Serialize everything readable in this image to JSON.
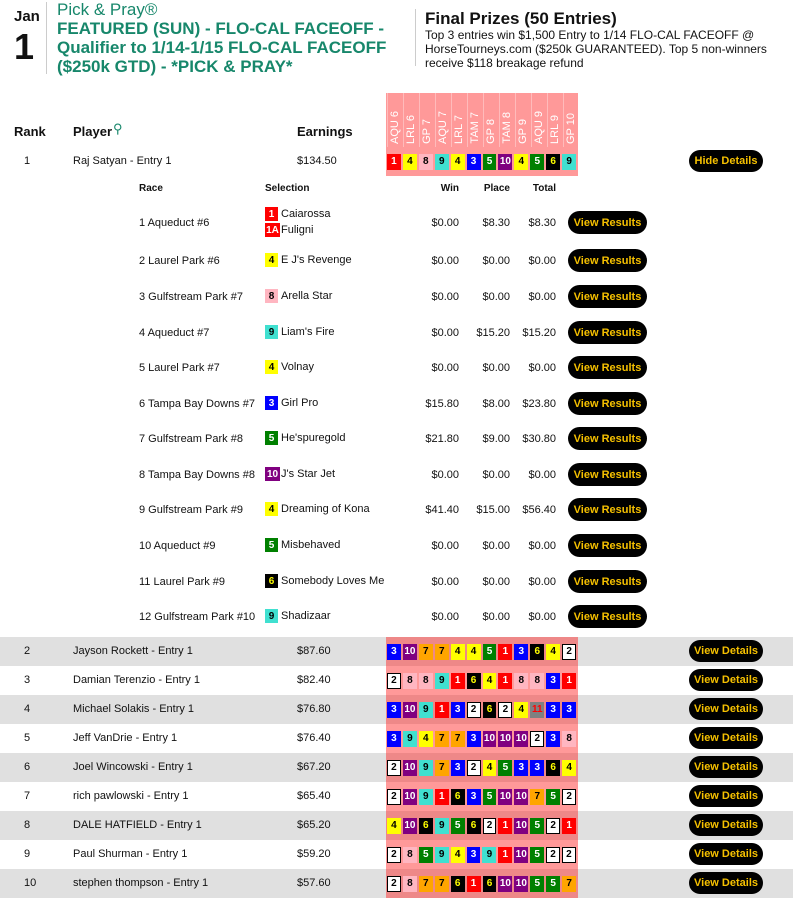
{
  "header": {
    "month": "Jan",
    "day": "1",
    "brand": "Pick & Pray®",
    "title": "FEATURED (SUN) - FLO-CAL FACEOFF - Qualifier to 1/14-1/15 FLO-CAL FACEOFF ($250k GTD) - *PICK & PRAY*",
    "prizes_title": "Final Prizes (50 Entries)",
    "prizes_text": "Top 3 entries win $1,500 Entry to 1/14 FLO-CAL FACEOFF @ HorseTourneys.com ($250k GUARANTEED). Top 5 non-winners receive $118 breakage refund"
  },
  "columns": {
    "rank": "Rank",
    "player": "Player",
    "earnings": "Earnings",
    "tracks": [
      "AQU 6",
      "LRL 6",
      "GP 7",
      "AQU 7",
      "LRL 7",
      "TAM 7",
      "GP 8",
      "TAM 8",
      "GP 9",
      "AQU 9",
      "LRL 9",
      "GP 10"
    ]
  },
  "colors": {
    "1": [
      "#ff0000",
      "#fff"
    ],
    "1A": [
      "#ff0000",
      "#fff"
    ],
    "2": [
      "#ffffff",
      "#000"
    ],
    "3": [
      "#0000ff",
      "#fff"
    ],
    "4": [
      "#ffff00",
      "#000"
    ],
    "5": [
      "#008000",
      "#fff"
    ],
    "6": [
      "#000000",
      "#ffff00"
    ],
    "7": [
      "#ffa500",
      "#000"
    ],
    "8": [
      "#ffb6c1",
      "#000"
    ],
    "9": [
      "#40e0d0",
      "#000"
    ],
    "10": [
      "#800080",
      "#fff"
    ],
    "11": [
      "#808080",
      "#ff0000"
    ]
  },
  "details_header": {
    "race": "Race",
    "selection": "Selection",
    "win": "Win",
    "place": "Place",
    "total": "Total"
  },
  "details": [
    {
      "race": "1 Aqueduct #6",
      "sel": [
        [
          "1",
          "Caiarossa"
        ],
        [
          "1A",
          "Fuligni"
        ]
      ],
      "win": "$0.00",
      "place": "$8.30",
      "total": "$8.30",
      "button": "View Results"
    },
    {
      "race": "2 Laurel Park #6",
      "sel": [
        [
          "4",
          "E J's Revenge"
        ]
      ],
      "win": "$0.00",
      "place": "$0.00",
      "total": "$0.00",
      "button": "View Results"
    },
    {
      "race": "3 Gulfstream Park #7",
      "sel": [
        [
          "8",
          "Arella Star"
        ]
      ],
      "win": "$0.00",
      "place": "$0.00",
      "total": "$0.00",
      "button": "View Results"
    },
    {
      "race": "4 Aqueduct #7",
      "sel": [
        [
          "9",
          "Liam's Fire"
        ]
      ],
      "win": "$0.00",
      "place": "$15.20",
      "total": "$15.20",
      "button": "View Results"
    },
    {
      "race": "5 Laurel Park #7",
      "sel": [
        [
          "4",
          "Volnay"
        ]
      ],
      "win": "$0.00",
      "place": "$0.00",
      "total": "$0.00",
      "button": "View Results"
    },
    {
      "race": "6 Tampa Bay Downs #7",
      "sel": [
        [
          "3",
          "Girl Pro"
        ]
      ],
      "win": "$15.80",
      "place": "$8.00",
      "total": "$23.80",
      "button": "View Results"
    },
    {
      "race": "7 Gulfstream Park #8",
      "sel": [
        [
          "5",
          "He'spuregold"
        ]
      ],
      "win": "$21.80",
      "place": "$9.00",
      "total": "$30.80",
      "button": "View Results"
    },
    {
      "race": "8 Tampa Bay Downs #8",
      "sel": [
        [
          "10",
          "J's Star Jet"
        ]
      ],
      "win": "$0.00",
      "place": "$0.00",
      "total": "$0.00",
      "button": "View Results"
    },
    {
      "race": "9 Gulfstream Park #9",
      "sel": [
        [
          "4",
          "Dreaming of Kona"
        ]
      ],
      "win": "$41.40",
      "place": "$15.00",
      "total": "$56.40",
      "button": "View Results"
    },
    {
      "race": "10 Aqueduct #9",
      "sel": [
        [
          "5",
          "Misbehaved"
        ]
      ],
      "win": "$0.00",
      "place": "$0.00",
      "total": "$0.00",
      "button": "View Results"
    },
    {
      "race": "11 Laurel Park #9",
      "sel": [
        [
          "6",
          "Somebody Loves Me"
        ]
      ],
      "win": "$0.00",
      "place": "$0.00",
      "total": "$0.00",
      "button": "View Results"
    },
    {
      "race": "12 Gulfstream Park #10",
      "sel": [
        [
          "9",
          "Shadizaar"
        ]
      ],
      "win": "$0.00",
      "place": "$0.00",
      "total": "$0.00",
      "button": "View Results"
    }
  ],
  "entries": [
    {
      "rank": "1",
      "player": "Raj Satyan - Entry 1",
      "earnings": "$134.50",
      "picks": [
        "1",
        "4",
        "8",
        "9",
        "4",
        "3",
        "5",
        "10",
        "4",
        "5",
        "6",
        "9"
      ],
      "button": "Hide Details"
    },
    {
      "rank": "2",
      "player": "Jayson Rockett - Entry 1",
      "earnings": "$87.60",
      "picks": [
        "3",
        "10",
        "7",
        "7",
        "4",
        "4",
        "5",
        "1",
        "3",
        "6",
        "4",
        "2"
      ],
      "button": "View Details"
    },
    {
      "rank": "3",
      "player": "Damian Terenzio - Entry 1",
      "earnings": "$82.40",
      "picks": [
        "2",
        "8",
        "8",
        "9",
        "1",
        "6",
        "4",
        "1",
        "8",
        "8",
        "3",
        "1"
      ],
      "button": "View Details"
    },
    {
      "rank": "4",
      "player": "Michael Solakis - Entry 1",
      "earnings": "$76.80",
      "picks": [
        "3",
        "10",
        "9",
        "1",
        "3",
        "2",
        "6",
        "2",
        "4",
        "11",
        "3",
        "3"
      ],
      "button": "View Details"
    },
    {
      "rank": "5",
      "player": "Jeff VanDrie - Entry 1",
      "earnings": "$76.40",
      "picks": [
        "3",
        "9",
        "4",
        "7",
        "7",
        "3",
        "10",
        "10",
        "10",
        "2",
        "3",
        "8"
      ],
      "button": "View Details"
    },
    {
      "rank": "6",
      "player": "Joel Wincowski - Entry 1",
      "earnings": "$67.20",
      "picks": [
        "2",
        "10",
        "9",
        "7",
        "3",
        "2",
        "4",
        "5",
        "3",
        "3",
        "6",
        "4"
      ],
      "button": "View Details"
    },
    {
      "rank": "7",
      "player": "rich pawlowski - Entry 1",
      "earnings": "$65.40",
      "picks": [
        "2",
        "10",
        "9",
        "1",
        "6",
        "3",
        "5",
        "10",
        "10",
        "7",
        "5",
        "2"
      ],
      "button": "View Details"
    },
    {
      "rank": "8",
      "player": "DALE HATFIELD - Entry 1",
      "earnings": "$65.20",
      "picks": [
        "4",
        "10",
        "6",
        "9",
        "5",
        "6",
        "2",
        "1",
        "10",
        "5",
        "2",
        "1"
      ],
      "button": "View Details"
    },
    {
      "rank": "9",
      "player": "Paul Shurman - Entry 1",
      "earnings": "$59.20",
      "picks": [
        "2",
        "8",
        "5",
        "9",
        "4",
        "3",
        "9",
        "1",
        "10",
        "5",
        "2",
        "2"
      ],
      "button": "View Details"
    },
    {
      "rank": "10",
      "player": "stephen thompson - Entry 1",
      "earnings": "$57.60",
      "picks": [
        "2",
        "8",
        "7",
        "7",
        "6",
        "1",
        "6",
        "10",
        "10",
        "5",
        "5",
        "7"
      ],
      "button": "View Details"
    }
  ]
}
